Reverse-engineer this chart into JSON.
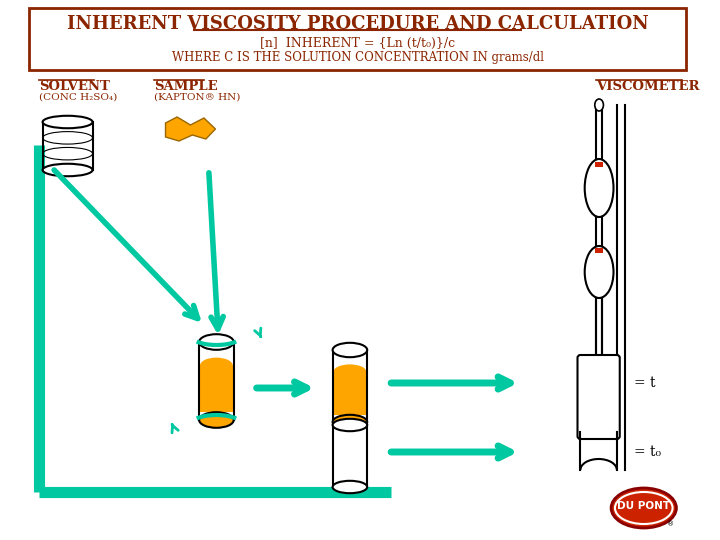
{
  "title": "INHERENT VISCOSITY PROCEDURE AND CALCULATION",
  "title_color": "#8B2500",
  "subtitle1": "[n]  INHERENT = {Ln (t/t₀)}/c",
  "subtitle2": "WHERE C IS THE SOLUTION CONCENTRATION IN grams/dl",
  "bg_color": "#FFFFFF",
  "box_color": "#8B2500",
  "arrow_color": "#00C8A0",
  "label_solvent": "SOLVENT",
  "label_solvent_sub": "(CONC H₂SO₄)",
  "label_sample": "SAMPLE",
  "label_sample_sub": "(KAPTON® HN)",
  "label_viscometer": "VISCOMETER",
  "label_t": "= t",
  "label_t0": "= t₀",
  "orange_color": "#FFA500",
  "teal_color": "#00C8A0",
  "red_color": "#CC2200",
  "text_color": "#8B2500"
}
